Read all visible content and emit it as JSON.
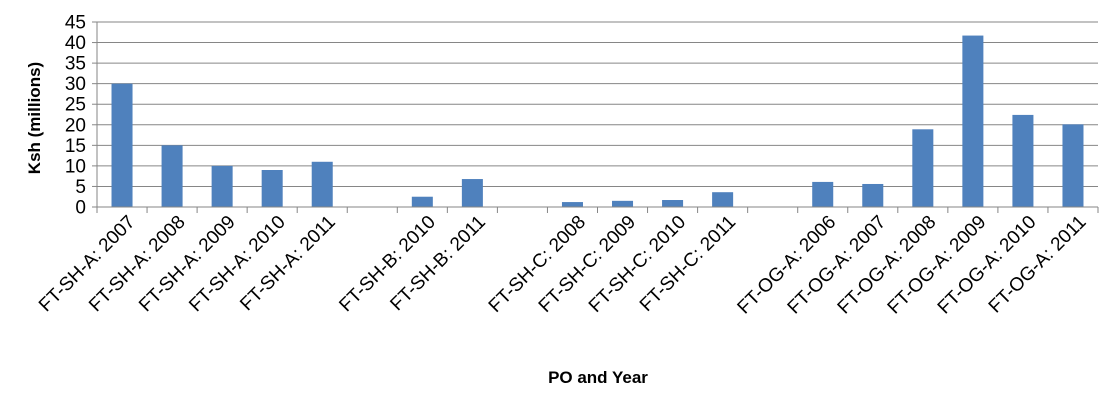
{
  "chart_data": {
    "type": "bar",
    "title": "",
    "xlabel": "PO and Year",
    "ylabel": "Ksh (millions)",
    "ylim": [
      0,
      45
    ],
    "yticks": [
      0,
      5,
      10,
      15,
      20,
      25,
      30,
      35,
      40,
      45
    ],
    "grid": true,
    "legend": "none",
    "bar_color": "#4F81BD",
    "categories": [
      "FT-SH-A: 2007",
      "FT-SH-A: 2008",
      "FT-SH-A: 2009",
      "FT-SH-A: 2010",
      "FT-SH-A: 2011",
      "",
      "FT-SH-B: 2010",
      "FT-SH-B: 2011",
      "",
      "FT-SH-C: 2008",
      "FT-SH-C: 2009",
      "FT-SH-C: 2010",
      "FT-SH-C: 2011",
      "",
      "FT-OG-A: 2006",
      "FT-OG-A: 2007",
      "FT-OG-A: 2008",
      "FT-OG-A: 2009",
      "FT-OG-A: 2010",
      "FT-OG-A: 2011"
    ],
    "values": [
      30,
      15,
      10,
      9,
      11,
      null,
      2.5,
      6.8,
      null,
      1.2,
      1.5,
      1.7,
      3.6,
      null,
      6.1,
      5.6,
      18.9,
      41.7,
      22.4,
      20.1
    ]
  }
}
